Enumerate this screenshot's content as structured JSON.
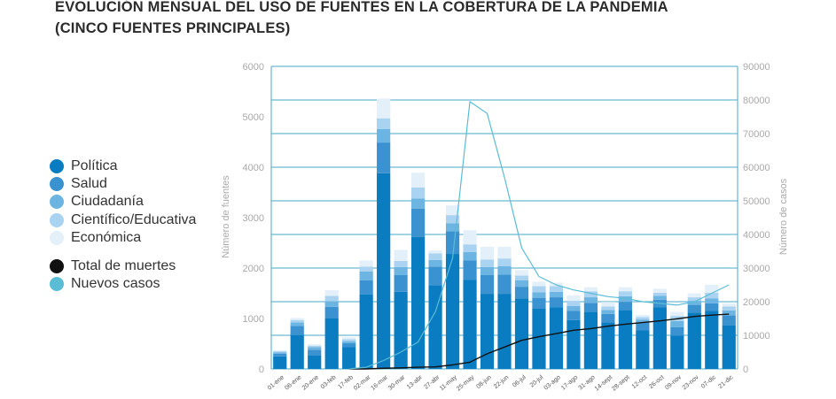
{
  "title_line1": "EVOLUCIÓN MENSUAL DEL USO DE FUENTES EN LA COBERTURA DE LA PANDEMIA",
  "title_line2": "(CINCO FUENTES PRINCIPALES)",
  "legend": [
    {
      "label": "Política",
      "color": "#0a7cc1"
    },
    {
      "label": "Salud",
      "color": "#3a93d0"
    },
    {
      "label": "Ciudadanía",
      "color": "#6cb4e2"
    },
    {
      "label": "Científico/Educativa",
      "color": "#a9d3f0"
    },
    {
      "label": "Económica",
      "color": "#e3eff9"
    },
    {
      "label": "Total de muertes",
      "color": "#111111"
    },
    {
      "label": "Nuevos casos",
      "color": "#5bbcd6"
    }
  ],
  "chart_data": {
    "type": "bar",
    "stacked": true,
    "title": "EVOLUCIÓN MENSUAL DEL USO DE FUENTES EN LA COBERTURA DE LA PANDEMIA (CINCO FUENTES PRINCIPALES)",
    "ylabel": "Número de fuentes",
    "y2label": "Número de casos",
    "ylim": [
      0,
      6000
    ],
    "y2lim": [
      0,
      90000
    ],
    "yticks": [
      "0",
      "1000",
      "2000",
      "3000",
      "4000",
      "5000",
      "6000"
    ],
    "y2ticks": [
      "0",
      "10000",
      "20000",
      "30000",
      "40000",
      "50000",
      "60000",
      "70000",
      "80000",
      "90000"
    ],
    "grid": true,
    "legend_position": "left",
    "categories": [
      "01-ene",
      "06-ene",
      "20-ene",
      "03-feb",
      "17-feb",
      "02-mar",
      "16-mar",
      "30-mar",
      "13-abr",
      "27-abr",
      "11-may",
      "25-may",
      "08-jun",
      "22-jun",
      "06-jul",
      "20-jul",
      "03-ago",
      "17-ago",
      "31-ago",
      "14-sept",
      "28-sept",
      "12-oct",
      "26-oct",
      "09-nov",
      "23-nov",
      "07-dic",
      "21-dic"
    ],
    "series": [
      {
        "name": "Política",
        "color": "#0a7cc1",
        "values": [
          250,
          680,
          270,
          1000,
          430,
          1480,
          3880,
          1530,
          2620,
          1660,
          2280,
          1770,
          1490,
          1490,
          1400,
          1200,
          1220,
          970,
          1130,
          920,
          1170,
          770,
          1220,
          660,
          1120,
          1150,
          860
        ]
      },
      {
        "name": "Salud",
        "color": "#3a93d0",
        "values": [
          50,
          170,
          110,
          230,
          80,
          280,
          610,
          330,
          560,
          370,
          450,
          380,
          370,
          380,
          230,
          210,
          200,
          180,
          180,
          170,
          160,
          150,
          150,
          170,
          150,
          150,
          200
        ]
      },
      {
        "name": "Ciudadanía",
        "color": "#6cb4e2",
        "values": [
          30,
          70,
          50,
          110,
          40,
          170,
          270,
          160,
          200,
          130,
          160,
          170,
          160,
          170,
          130,
          110,
          110,
          100,
          110,
          80,
          110,
          60,
          80,
          120,
          80,
          100,
          100
        ]
      },
      {
        "name": "Científico/Educativa",
        "color": "#a9d3f0",
        "values": [
          20,
          50,
          30,
          110,
          40,
          100,
          210,
          120,
          220,
          130,
          160,
          150,
          150,
          150,
          90,
          120,
          110,
          100,
          120,
          70,
          100,
          50,
          60,
          100,
          70,
          110,
          80
        ]
      },
      {
        "name": "Económica",
        "color": "#e3eff9",
        "values": [
          20,
          40,
          30,
          110,
          40,
          120,
          390,
          220,
          290,
          60,
          190,
          280,
          250,
          230,
          110,
          90,
          70,
          110,
          80,
          90,
          80,
          40,
          80,
          80,
          80,
          160,
          60
        ]
      }
    ],
    "lines": [
      {
        "name": "Total de muertes",
        "color": "#111111",
        "axis": "right",
        "values": [
          null,
          null,
          null,
          null,
          0,
          0,
          200,
          300,
          500,
          600,
          1200,
          2000,
          4500,
          6500,
          8500,
          9600,
          10500,
          11500,
          12000,
          12700,
          13300,
          13800,
          14300,
          14900,
          15600,
          16000,
          16300
        ]
      },
      {
        "name": "Nuevos casos",
        "color": "#5bbcd6",
        "axis": "right",
        "values": [
          null,
          null,
          null,
          null,
          0,
          500,
          2500,
          5000,
          8000,
          17000,
          33000,
          79500,
          76000,
          57000,
          36000,
          27500,
          25000,
          23500,
          22500,
          21500,
          21000,
          20000,
          19500,
          19000,
          20000,
          22500,
          25000
        ]
      }
    ]
  }
}
